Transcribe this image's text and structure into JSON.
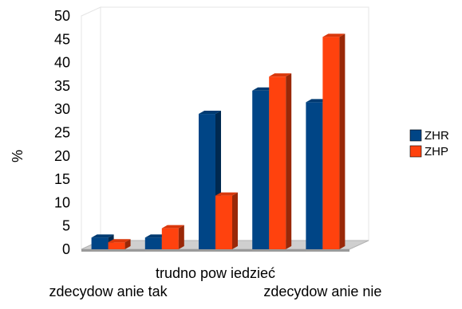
{
  "chart_data": {
    "type": "bar",
    "variant": "3d-clustered",
    "title": "",
    "xlabel": "",
    "ylabel": "%",
    "ylim": [
      0,
      50
    ],
    "yticks": [
      0,
      5,
      10,
      15,
      20,
      25,
      30,
      35,
      40,
      45,
      50
    ],
    "grid": false,
    "legend_position": "right",
    "categories": [
      "zdecydow anie tak",
      "",
      "trudno pow iedzieć",
      "",
      "zdecydow anie nie"
    ],
    "series": [
      {
        "name": "ZHR",
        "color": "#004586",
        "values": [
          2.5,
          2.5,
          29,
          34,
          31.5
        ]
      },
      {
        "name": "ZHP",
        "color": "#ff420e",
        "values": [
          1.5,
          4.5,
          11.5,
          37,
          45.5
        ]
      }
    ]
  }
}
